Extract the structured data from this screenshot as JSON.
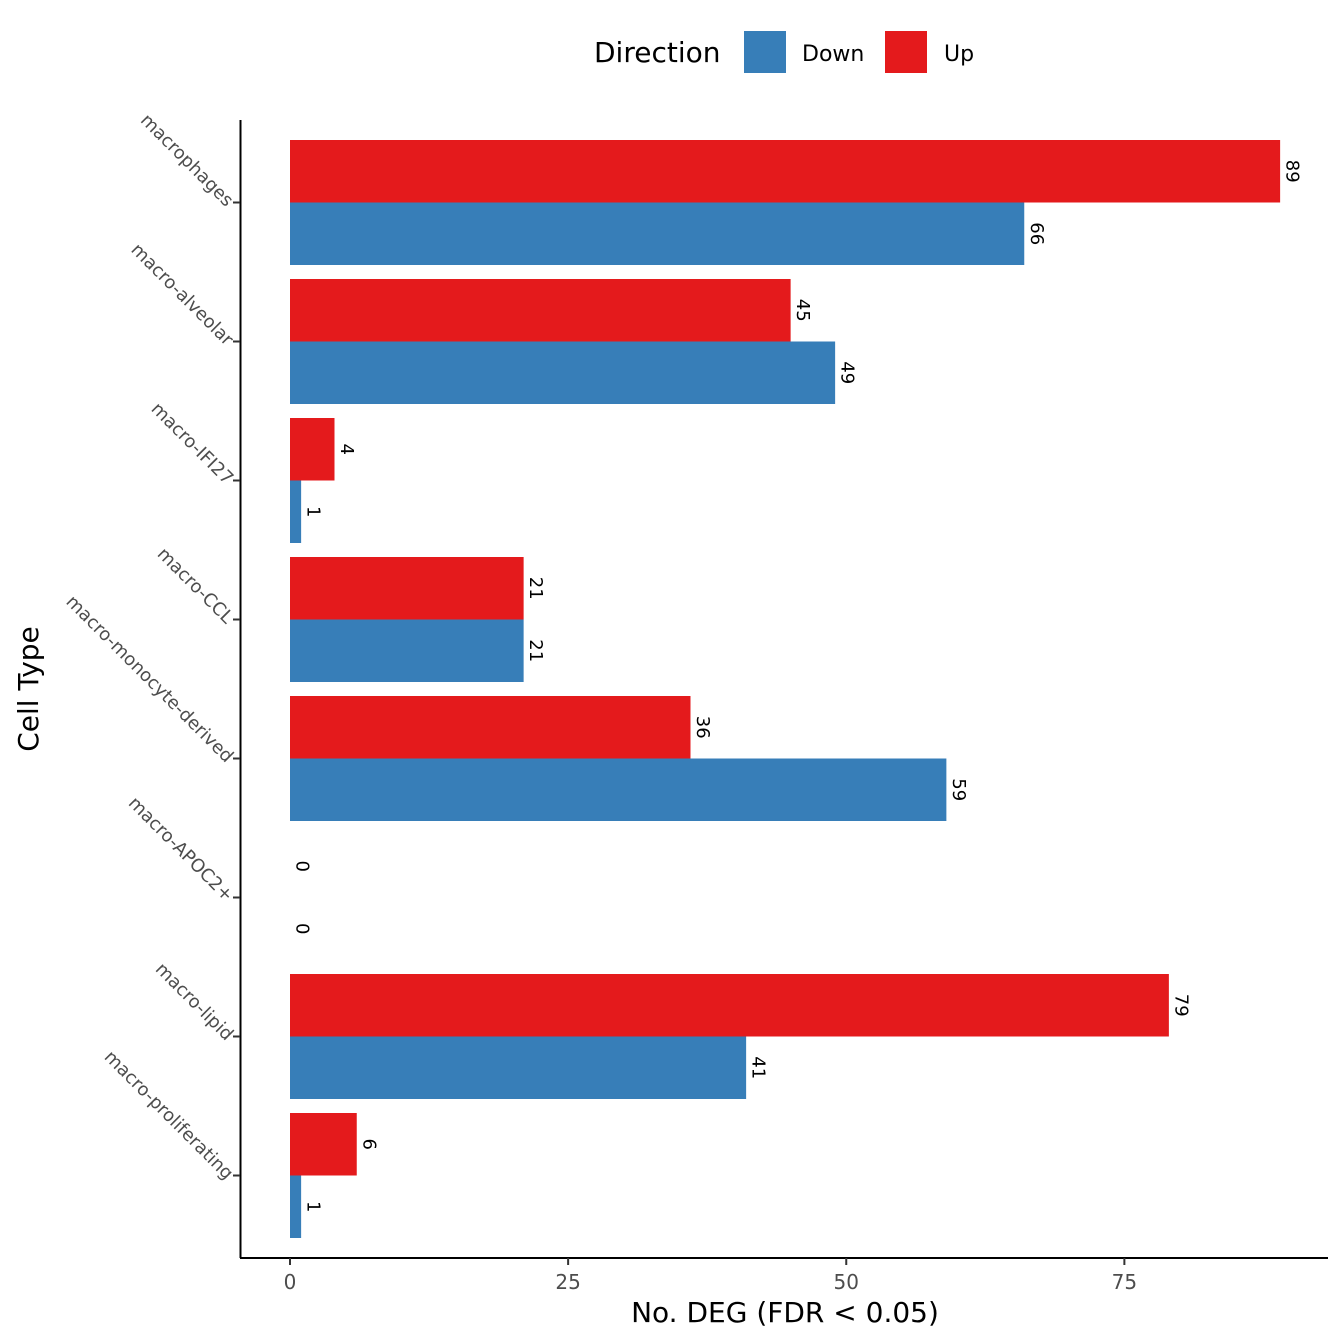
{
  "chart_data": {
    "type": "bar",
    "orientation": "horizontal",
    "xlabel": "No. DEG (FDR < 0.05)",
    "ylabel": "Cell Type",
    "xlim": [
      0,
      93
    ],
    "xticks": [
      0,
      25,
      50,
      75
    ],
    "grid": false,
    "legend": {
      "title": "Direction",
      "placement": "top",
      "entries": [
        {
          "name": "Down",
          "color": "#377EB8"
        },
        {
          "name": "Up",
          "color": "#E41A1C"
        }
      ]
    },
    "categories": [
      "macrophages",
      "macro-alveolar",
      "macro-IFI27",
      "macro-CCL",
      "macro-monocyte-derived",
      "macro-APOC2+",
      "macro-lipid",
      "macro-proliferating"
    ],
    "series": [
      {
        "name": "Up",
        "color": "#E41A1C",
        "values": [
          89,
          45,
          4,
          21,
          36,
          0,
          79,
          6
        ]
      },
      {
        "name": "Down",
        "color": "#377EB8",
        "values": [
          66,
          49,
          1,
          21,
          59,
          0,
          41,
          1
        ]
      }
    ]
  }
}
